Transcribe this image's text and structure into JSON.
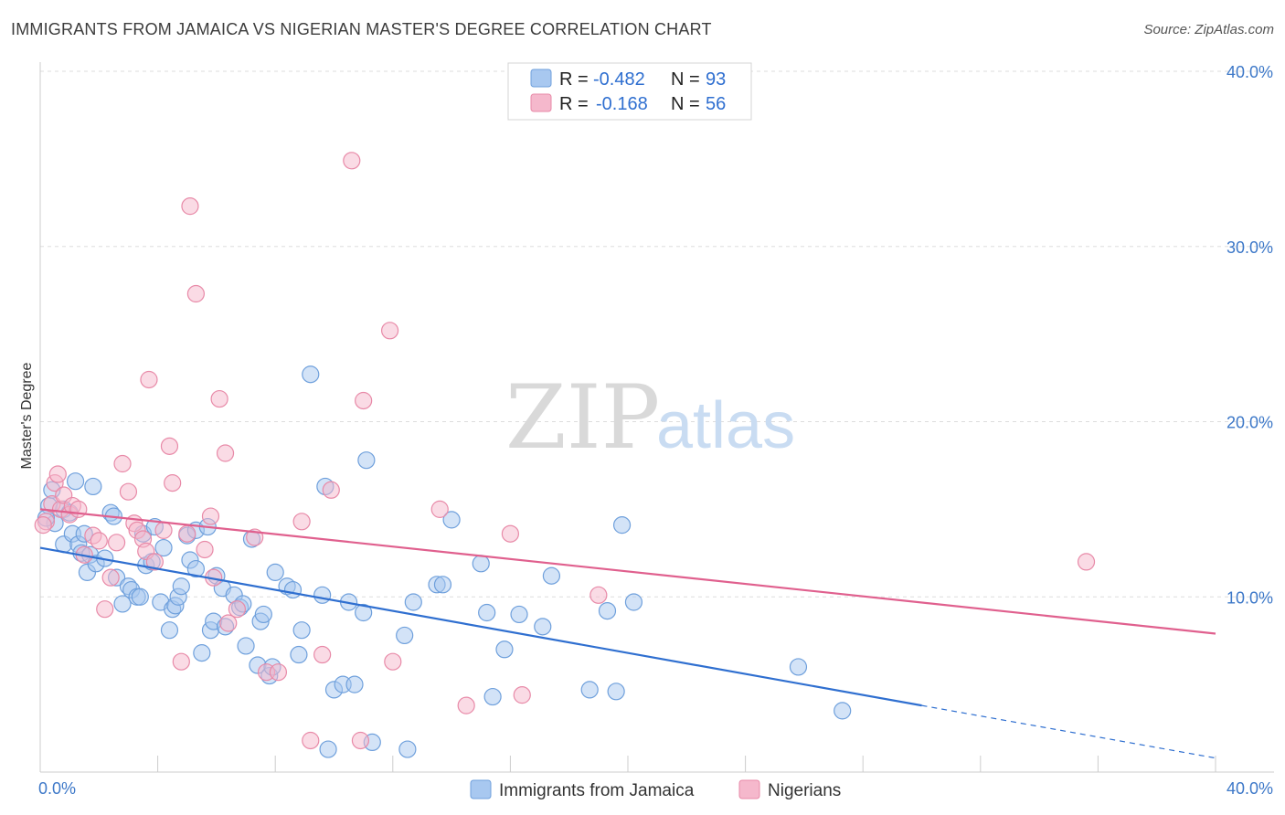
{
  "title": "IMMIGRANTS FROM JAMAICA VS NIGERIAN MASTER'S DEGREE CORRELATION CHART",
  "source": "Source: ZipAtlas.com",
  "watermark": {
    "zip": "ZIP",
    "atlas": "atlas"
  },
  "colors": {
    "blue_fill": "#a8c8f0",
    "blue_stroke": "#6fa0dc",
    "blue_line": "#2f6fd0",
    "pink_fill": "#f5b8cc",
    "pink_stroke": "#e88aa8",
    "pink_line": "#e0608e",
    "axis_text": "#3d78c8",
    "grid": "#dddddd"
  },
  "legend": {
    "rows": [
      {
        "r_label": "R =",
        "r_value": "-0.482",
        "n_label": "N =",
        "n_value": "93",
        "color": "blue"
      },
      {
        "r_label": "R =",
        "r_value": "-0.168",
        "n_label": "N =",
        "n_value": "56",
        "color": "pink"
      }
    ]
  },
  "chart_data": {
    "type": "scatter",
    "xlabel": "",
    "ylabel": "Master's Degree",
    "xlim": [
      0,
      40
    ],
    "ylim": [
      0,
      40
    ],
    "x_tick_labels": [
      "0.0%",
      "40.0%"
    ],
    "y_tick_labels": [
      "10.0%",
      "20.0%",
      "30.0%",
      "40.0%"
    ],
    "y_ticks": [
      10,
      20,
      30,
      40
    ],
    "grid": true,
    "legend_position": "bottom-center",
    "series": [
      {
        "name": "Immigrants from Jamaica",
        "color": "blue",
        "trend": {
          "x0": 0,
          "y0": 12.8,
          "x1": 30,
          "y1": 3.8,
          "dashed_to_x": 40,
          "dashed_to_y": 0.8
        },
        "points": [
          [
            0.3,
            15.2
          ],
          [
            0.4,
            16.1
          ],
          [
            0.5,
            14.2
          ],
          [
            0.8,
            15.0
          ],
          [
            0.8,
            13.0
          ],
          [
            1.0,
            14.8
          ],
          [
            1.1,
            13.6
          ],
          [
            1.2,
            16.6
          ],
          [
            1.3,
            13.0
          ],
          [
            1.4,
            12.5
          ],
          [
            1.5,
            13.6
          ],
          [
            1.6,
            11.4
          ],
          [
            1.7,
            12.4
          ],
          [
            1.8,
            16.3
          ],
          [
            1.9,
            11.9
          ],
          [
            2.2,
            12.2
          ],
          [
            2.4,
            14.8
          ],
          [
            2.5,
            14.6
          ],
          [
            2.6,
            11.1
          ],
          [
            2.8,
            9.6
          ],
          [
            3.0,
            10.6
          ],
          [
            3.1,
            10.4
          ],
          [
            3.3,
            10.0
          ],
          [
            3.4,
            10.0
          ],
          [
            3.5,
            13.6
          ],
          [
            3.6,
            11.8
          ],
          [
            3.8,
            12.0
          ],
          [
            3.9,
            14.0
          ],
          [
            4.1,
            9.7
          ],
          [
            4.2,
            12.8
          ],
          [
            4.4,
            8.1
          ],
          [
            4.5,
            9.3
          ],
          [
            4.6,
            9.5
          ],
          [
            4.7,
            10.0
          ],
          [
            4.8,
            10.6
          ],
          [
            5.0,
            13.5
          ],
          [
            5.1,
            12.1
          ],
          [
            5.3,
            11.6
          ],
          [
            5.3,
            13.8
          ],
          [
            5.5,
            6.8
          ],
          [
            5.7,
            14.0
          ],
          [
            5.8,
            8.1
          ],
          [
            5.9,
            8.6
          ],
          [
            6.0,
            11.2
          ],
          [
            6.2,
            10.5
          ],
          [
            6.3,
            8.3
          ],
          [
            6.6,
            10.1
          ],
          [
            6.8,
            9.4
          ],
          [
            6.9,
            9.6
          ],
          [
            7.0,
            7.2
          ],
          [
            7.2,
            13.3
          ],
          [
            7.4,
            6.1
          ],
          [
            7.5,
            8.6
          ],
          [
            7.6,
            9.0
          ],
          [
            7.8,
            5.5
          ],
          [
            7.9,
            6.0
          ],
          [
            8.0,
            11.4
          ],
          [
            8.4,
            10.6
          ],
          [
            8.6,
            10.4
          ],
          [
            8.8,
            6.7
          ],
          [
            8.9,
            8.1
          ],
          [
            9.2,
            22.7
          ],
          [
            9.6,
            10.1
          ],
          [
            9.7,
            16.3
          ],
          [
            9.8,
            1.3
          ],
          [
            10.0,
            4.7
          ],
          [
            10.3,
            5.0
          ],
          [
            10.5,
            9.7
          ],
          [
            10.7,
            5.0
          ],
          [
            11.0,
            9.1
          ],
          [
            11.1,
            17.8
          ],
          [
            11.3,
            1.7
          ],
          [
            12.4,
            7.8
          ],
          [
            12.5,
            1.3
          ],
          [
            12.7,
            9.7
          ],
          [
            13.5,
            10.7
          ],
          [
            13.7,
            10.7
          ],
          [
            14.0,
            14.4
          ],
          [
            15.0,
            11.9
          ],
          [
            15.2,
            9.1
          ],
          [
            15.4,
            4.3
          ],
          [
            15.8,
            7.0
          ],
          [
            16.3,
            9.0
          ],
          [
            17.1,
            8.3
          ],
          [
            17.4,
            11.2
          ],
          [
            18.7,
            4.7
          ],
          [
            19.3,
            9.2
          ],
          [
            19.6,
            4.6
          ],
          [
            19.8,
            14.1
          ],
          [
            20.2,
            9.7
          ],
          [
            25.8,
            6.0
          ],
          [
            27.3,
            3.5
          ],
          [
            0.2,
            14.5
          ]
        ]
      },
      {
        "name": "Nigerians",
        "color": "pink",
        "trend": {
          "x0": 0,
          "y0": 15.0,
          "x1": 40,
          "y1": 7.9
        },
        "points": [
          [
            0.2,
            14.3
          ],
          [
            0.4,
            15.3
          ],
          [
            0.5,
            16.5
          ],
          [
            0.6,
            17.0
          ],
          [
            0.7,
            15.0
          ],
          [
            0.8,
            15.8
          ],
          [
            1.0,
            14.7
          ],
          [
            1.1,
            15.2
          ],
          [
            1.3,
            15.0
          ],
          [
            1.5,
            12.4
          ],
          [
            1.8,
            13.5
          ],
          [
            2.0,
            13.2
          ],
          [
            2.2,
            9.3
          ],
          [
            2.4,
            11.1
          ],
          [
            2.6,
            13.1
          ],
          [
            2.8,
            17.6
          ],
          [
            3.0,
            16.0
          ],
          [
            3.2,
            14.2
          ],
          [
            3.3,
            13.8
          ],
          [
            3.5,
            13.3
          ],
          [
            3.6,
            12.6
          ],
          [
            3.7,
            22.4
          ],
          [
            3.9,
            12.0
          ],
          [
            4.2,
            13.8
          ],
          [
            4.4,
            18.6
          ],
          [
            4.5,
            16.5
          ],
          [
            4.8,
            6.3
          ],
          [
            5.0,
            13.6
          ],
          [
            5.1,
            32.3
          ],
          [
            5.3,
            27.3
          ],
          [
            5.6,
            12.7
          ],
          [
            5.8,
            14.6
          ],
          [
            5.9,
            11.1
          ],
          [
            6.1,
            21.3
          ],
          [
            6.3,
            18.2
          ],
          [
            6.4,
            8.5
          ],
          [
            6.7,
            9.3
          ],
          [
            7.3,
            13.4
          ],
          [
            7.7,
            5.7
          ],
          [
            8.1,
            5.7
          ],
          [
            8.9,
            14.3
          ],
          [
            9.2,
            1.8
          ],
          [
            9.6,
            6.7
          ],
          [
            9.9,
            16.1
          ],
          [
            10.6,
            34.9
          ],
          [
            10.9,
            1.8
          ],
          [
            11.0,
            21.2
          ],
          [
            11.9,
            25.2
          ],
          [
            12.0,
            6.3
          ],
          [
            13.6,
            15.0
          ],
          [
            14.5,
            3.8
          ],
          [
            16.0,
            13.6
          ],
          [
            16.4,
            4.4
          ],
          [
            19.0,
            10.1
          ],
          [
            35.6,
            12.0
          ],
          [
            0.1,
            14.1
          ]
        ]
      }
    ]
  }
}
